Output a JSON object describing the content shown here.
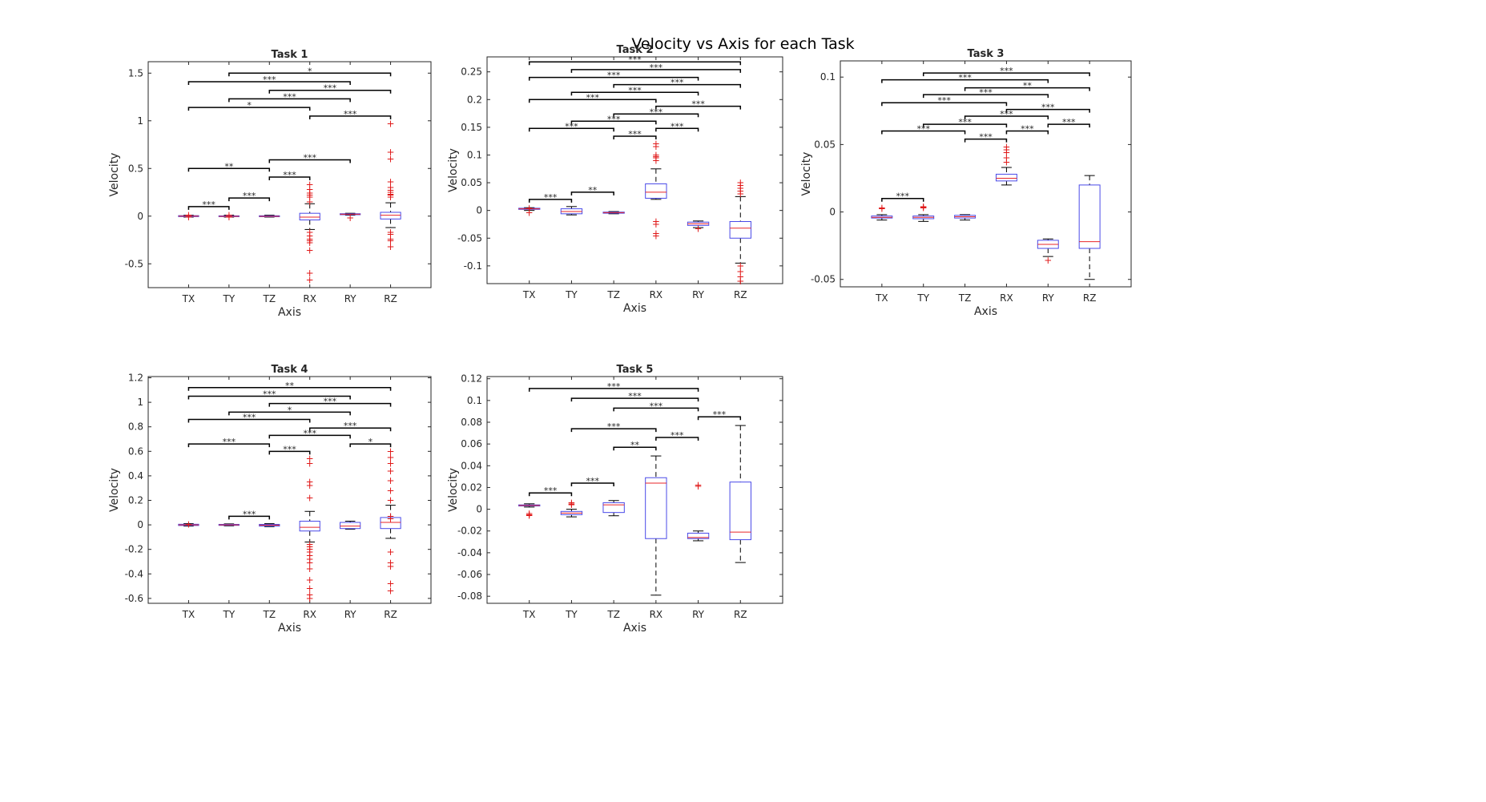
{
  "figure": {
    "title": "Velocity vs Axis for each Task"
  },
  "colors": {
    "box": "#4a4ae8",
    "median": "#e8262a",
    "outlier": "#e01a1a",
    "whisker": "#000000",
    "axes": "#262626"
  },
  "chart_data": [
    {
      "type": "box",
      "title": "Task 1",
      "xlabel": "Axis",
      "ylabel": "Velocity",
      "categories": [
        "TX",
        "TY",
        "TZ",
        "RX",
        "RY",
        "RZ"
      ],
      "ylim": [
        -0.75,
        1.62
      ],
      "yticks": [
        -0.5,
        0,
        0.5,
        1,
        1.5
      ],
      "yticklabels": [
        "-0.5",
        "0",
        "0.5",
        "1",
        "1.5"
      ],
      "boxes": [
        {
          "q1": -0.005,
          "median": 0.0,
          "q3": 0.005,
          "wlo": -0.01,
          "whi": 0.01,
          "outliers": [
            0.01,
            -0.01
          ]
        },
        {
          "q1": -0.005,
          "median": -0.002,
          "q3": 0.003,
          "wlo": -0.01,
          "whi": 0.01,
          "outliers": [
            0.01,
            -0.01
          ]
        },
        {
          "q1": -0.006,
          "median": -0.002,
          "q3": 0.004,
          "wlo": -0.01,
          "whi": 0.01,
          "outliers": []
        },
        {
          "q1": -0.04,
          "median": -0.01,
          "q3": 0.03,
          "wlo": -0.14,
          "whi": 0.13,
          "outliers": [
            0.33,
            0.28,
            0.24,
            0.22,
            0.2,
            0.15,
            -0.17,
            -0.21,
            -0.24,
            -0.26,
            -0.28,
            -0.36,
            -0.6,
            -0.67
          ]
        },
        {
          "q1": 0.015,
          "median": 0.02,
          "q3": 0.025,
          "wlo": 0.01,
          "whi": 0.03,
          "outliers": [
            -0.02
          ]
        },
        {
          "q1": -0.03,
          "median": 0.01,
          "q3": 0.04,
          "wlo": -0.12,
          "whi": 0.14,
          "outliers": [
            0.97,
            0.67,
            0.6,
            0.36,
            0.3,
            0.27,
            0.25,
            0.23,
            0.22,
            0.2,
            -0.17,
            -0.19,
            -0.24,
            -0.26,
            -0.32
          ]
        }
      ],
      "brackets": [
        {
          "from": "TY",
          "to": "RZ",
          "y": 1.5,
          "label": "*"
        },
        {
          "from": "TX",
          "to": "RY",
          "y": 1.41,
          "label": "***"
        },
        {
          "from": "TZ",
          "to": "RZ",
          "y": 1.32,
          "label": "***"
        },
        {
          "from": "TY",
          "to": "RY",
          "y": 1.23,
          "label": "***"
        },
        {
          "from": "TX",
          "to": "RX",
          "y": 1.14,
          "label": "*"
        },
        {
          "from": "RX",
          "to": "RZ",
          "y": 1.05,
          "label": "***"
        },
        {
          "from": "TZ",
          "to": "RY",
          "y": 0.59,
          "label": "***"
        },
        {
          "from": "TX",
          "to": "TZ",
          "y": 0.5,
          "label": "**"
        },
        {
          "from": "TZ",
          "to": "RX",
          "y": 0.41,
          "label": "***"
        },
        {
          "from": "TY",
          "to": "TZ",
          "y": 0.19,
          "label": "***"
        },
        {
          "from": "TX",
          "to": "TY",
          "y": 0.1,
          "label": "***"
        }
      ]
    },
    {
      "type": "box",
      "title": "Task 2",
      "xlabel": "Axis",
      "ylabel": "Velocity",
      "categories": [
        "TX",
        "TY",
        "TZ",
        "RX",
        "RY",
        "RZ"
      ],
      "ylim": [
        -0.132,
        0.277
      ],
      "yticks": [
        -0.1,
        -0.05,
        0,
        0.05,
        0.1,
        0.15,
        0.2,
        0.25
      ],
      "yticklabels": [
        "-0.1",
        "-0.05",
        "0",
        "0.05",
        "0.1",
        "0.15",
        "0.2",
        "0.25"
      ],
      "boxes": [
        {
          "q1": 0.002,
          "median": 0.003,
          "q3": 0.004,
          "wlo": 0.0,
          "whi": 0.005,
          "outliers": [
            -0.004,
            0.004
          ]
        },
        {
          "q1": -0.006,
          "median": -0.002,
          "q3": 0.003,
          "wlo": -0.008,
          "whi": 0.007,
          "outliers": []
        },
        {
          "q1": -0.005,
          "median": -0.004,
          "q3": -0.003,
          "wlo": -0.006,
          "whi": -0.002,
          "outliers": []
        },
        {
          "q1": 0.022,
          "median": 0.033,
          "q3": 0.048,
          "wlo": 0.02,
          "whi": 0.075,
          "outliers": [
            0.12,
            0.115,
            0.1,
            0.097,
            0.095,
            0.09,
            -0.02,
            -0.025,
            -0.042,
            -0.046
          ]
        },
        {
          "q1": -0.027,
          "median": -0.024,
          "q3": -0.021,
          "wlo": -0.031,
          "whi": -0.019,
          "outliers": [
            -0.033
          ]
        },
        {
          "q1": -0.05,
          "median": -0.032,
          "q3": -0.02,
          "wlo": -0.095,
          "whi": 0.025,
          "outliers": [
            0.05,
            0.045,
            0.04,
            0.035,
            0.03,
            -0.1,
            -0.11,
            -0.12,
            -0.128
          ]
        }
      ],
      "brackets": [
        {
          "from": "TX",
          "to": "RZ",
          "y": 0.268,
          "label": "***"
        },
        {
          "from": "TY",
          "to": "RZ",
          "y": 0.254,
          "label": "***"
        },
        {
          "from": "TX",
          "to": "RY",
          "y": 0.24,
          "label": "***"
        },
        {
          "from": "TZ",
          "to": "RZ",
          "y": 0.227,
          "label": "***"
        },
        {
          "from": "TY",
          "to": "RY",
          "y": 0.213,
          "label": "***"
        },
        {
          "from": "TX",
          "to": "RX",
          "y": 0.2,
          "label": "***"
        },
        {
          "from": "RX",
          "to": "RZ",
          "y": 0.188,
          "label": "***"
        },
        {
          "from": "TZ",
          "to": "RY",
          "y": 0.174,
          "label": "***"
        },
        {
          "from": "TY",
          "to": "RX",
          "y": 0.161,
          "label": "***"
        },
        {
          "from": "TX",
          "to": "TZ",
          "y": 0.148,
          "label": "***"
        },
        {
          "from": "RX",
          "to": "RY",
          "y": 0.148,
          "label": "***"
        },
        {
          "from": "TZ",
          "to": "RX",
          "y": 0.134,
          "label": "***"
        },
        {
          "from": "TY",
          "to": "TZ",
          "y": 0.033,
          "label": "**"
        },
        {
          "from": "TX",
          "to": "TY",
          "y": 0.02,
          "label": "***"
        }
      ]
    },
    {
      "type": "box",
      "title": "Task 3",
      "xlabel": "Axis",
      "ylabel": "Velocity",
      "categories": [
        "TX",
        "TY",
        "TZ",
        "RX",
        "RY",
        "RZ"
      ],
      "ylim": [
        -0.0555,
        0.112
      ],
      "yticks": [
        -0.05,
        0,
        0.05,
        0.1
      ],
      "yticklabels": [
        "-0.05",
        "0",
        "0.05",
        "0.1"
      ],
      "boxes": [
        {
          "q1": -0.0045,
          "median": -0.004,
          "q3": -0.003,
          "wlo": -0.006,
          "whi": -0.002,
          "outliers": [
            0.003,
            0.0025
          ]
        },
        {
          "q1": -0.005,
          "median": -0.004,
          "q3": -0.003,
          "wlo": -0.007,
          "whi": -0.002,
          "outliers": [
            0.004,
            0.0035,
            0.003
          ]
        },
        {
          "q1": -0.0045,
          "median": -0.0035,
          "q3": -0.0025,
          "wlo": -0.006,
          "whi": -0.002,
          "outliers": []
        },
        {
          "q1": 0.023,
          "median": 0.025,
          "q3": 0.028,
          "wlo": 0.02,
          "whi": 0.033,
          "outliers": [
            0.048,
            0.046,
            0.044,
            0.04,
            0.037
          ]
        },
        {
          "q1": -0.027,
          "median": -0.024,
          "q3": -0.021,
          "wlo": -0.033,
          "whi": -0.02,
          "outliers": [
            -0.036
          ]
        },
        {
          "q1": -0.027,
          "median": -0.022,
          "q3": 0.02,
          "wlo": -0.05,
          "whi": 0.027,
          "outliers": []
        }
      ],
      "brackets": [
        {
          "from": "TY",
          "to": "RZ",
          "y": 0.103,
          "label": "***"
        },
        {
          "from": "TX",
          "to": "RY",
          "y": 0.098,
          "label": "***"
        },
        {
          "from": "TZ",
          "to": "RZ",
          "y": 0.092,
          "label": "**"
        },
        {
          "from": "TY",
          "to": "RY",
          "y": 0.087,
          "label": "***"
        },
        {
          "from": "TX",
          "to": "RX",
          "y": 0.081,
          "label": "***"
        },
        {
          "from": "RX",
          "to": "RZ",
          "y": 0.076,
          "label": "***"
        },
        {
          "from": "TZ",
          "to": "RY",
          "y": 0.071,
          "label": "***"
        },
        {
          "from": "TY",
          "to": "RX",
          "y": 0.065,
          "label": "***"
        },
        {
          "from": "RY",
          "to": "RZ",
          "y": 0.065,
          "label": "***"
        },
        {
          "from": "TX",
          "to": "TZ",
          "y": 0.06,
          "label": "***"
        },
        {
          "from": "RX",
          "to": "RY",
          "y": 0.06,
          "label": "***"
        },
        {
          "from": "TZ",
          "to": "RX",
          "y": 0.054,
          "label": "***"
        },
        {
          "from": "TX",
          "to": "TY",
          "y": 0.01,
          "label": "***"
        }
      ]
    },
    {
      "type": "box",
      "title": "Task 4",
      "xlabel": "Axis",
      "ylabel": "Velocity",
      "categories": [
        "TX",
        "TY",
        "TZ",
        "RX",
        "RY",
        "RZ"
      ],
      "ylim": [
        -0.64,
        1.21
      ],
      "yticks": [
        -0.6,
        -0.4,
        -0.2,
        0,
        0.2,
        0.4,
        0.6,
        0.8,
        1,
        1.2
      ],
      "yticklabels": [
        "-0.6",
        "-0.4",
        "-0.2",
        "0",
        "0.2",
        "0.4",
        "0.6",
        "0.8",
        "1",
        "1.2"
      ],
      "boxes": [
        {
          "q1": -0.005,
          "median": 0.0,
          "q3": 0.005,
          "wlo": -0.01,
          "whi": 0.01,
          "outliers": [
            0.005
          ]
        },
        {
          "q1": -0.004,
          "median": 0.0,
          "q3": 0.004,
          "wlo": -0.008,
          "whi": 0.008,
          "outliers": []
        },
        {
          "q1": -0.01,
          "median": -0.003,
          "q3": 0.004,
          "wlo": -0.015,
          "whi": 0.01,
          "outliers": []
        },
        {
          "q1": -0.05,
          "median": -0.02,
          "q3": 0.03,
          "wlo": -0.14,
          "whi": 0.11,
          "outliers": [
            0.54,
            0.5,
            0.35,
            0.32,
            0.22,
            -0.16,
            -0.18,
            -0.2,
            -0.22,
            -0.25,
            -0.28,
            -0.31,
            -0.36,
            -0.45,
            -0.52,
            -0.57,
            -0.6
          ]
        },
        {
          "q1": -0.03,
          "median": -0.01,
          "q3": 0.02,
          "wlo": -0.035,
          "whi": 0.03,
          "outliers": []
        },
        {
          "q1": -0.03,
          "median": 0.02,
          "q3": 0.06,
          "wlo": -0.11,
          "whi": 0.16,
          "outliers": [
            0.6,
            0.55,
            0.5,
            0.44,
            0.36,
            0.28,
            0.2,
            0.07,
            0.05,
            -0.22,
            -0.31,
            -0.34,
            -0.48,
            -0.54
          ]
        }
      ],
      "brackets": [
        {
          "from": "TX",
          "to": "RZ",
          "y": 1.12,
          "label": "**"
        },
        {
          "from": "TX",
          "to": "RY",
          "y": 1.05,
          "label": "***"
        },
        {
          "from": "TZ",
          "to": "RZ",
          "y": 0.99,
          "label": "***"
        },
        {
          "from": "TY",
          "to": "RY",
          "y": 0.92,
          "label": "*"
        },
        {
          "from": "TX",
          "to": "RX",
          "y": 0.86,
          "label": "***"
        },
        {
          "from": "RX",
          "to": "RZ",
          "y": 0.79,
          "label": "***"
        },
        {
          "from": "TZ",
          "to": "RY",
          "y": 0.73,
          "label": "***"
        },
        {
          "from": "TX",
          "to": "TZ",
          "y": 0.66,
          "label": "***"
        },
        {
          "from": "RY",
          "to": "RZ",
          "y": 0.66,
          "label": "*"
        },
        {
          "from": "TZ",
          "to": "RX",
          "y": 0.6,
          "label": "***"
        },
        {
          "from": "TY",
          "to": "TZ",
          "y": 0.07,
          "label": "***"
        }
      ]
    },
    {
      "type": "box",
      "title": "Task 5",
      "xlabel": "Axis",
      "ylabel": "Velocity",
      "categories": [
        "TX",
        "TY",
        "TZ",
        "RX",
        "RY",
        "RZ"
      ],
      "ylim": [
        -0.0865,
        0.122
      ],
      "yticks": [
        -0.08,
        -0.06,
        -0.04,
        -0.02,
        0,
        0.02,
        0.04,
        0.06,
        0.08,
        0.1,
        0.12
      ],
      "yticklabels": [
        "-0.08",
        "-0.06",
        "-0.04",
        "-0.02",
        "0",
        "0.02",
        "0.04",
        "0.06",
        "0.08",
        "0.1",
        "0.12"
      ],
      "boxes": [
        {
          "q1": 0.003,
          "median": 0.0035,
          "q3": 0.004,
          "wlo": 0.002,
          "whi": 0.005,
          "outliers": [
            -0.004,
            -0.005,
            -0.006
          ]
        },
        {
          "q1": -0.005,
          "median": -0.0035,
          "q3": -0.002,
          "wlo": -0.007,
          "whi": 0.0,
          "outliers": [
            0.006,
            0.005,
            0.004
          ]
        },
        {
          "q1": -0.003,
          "median": 0.004,
          "q3": 0.006,
          "wlo": -0.006,
          "whi": 0.008,
          "outliers": []
        },
        {
          "q1": -0.027,
          "median": 0.024,
          "q3": 0.029,
          "wlo": -0.079,
          "whi": 0.049,
          "outliers": []
        },
        {
          "q1": -0.027,
          "median": -0.026,
          "q3": -0.022,
          "wlo": -0.029,
          "whi": -0.02,
          "outliers": [
            0.022,
            0.021
          ]
        },
        {
          "q1": -0.028,
          "median": -0.021,
          "q3": 0.025,
          "wlo": -0.049,
          "whi": 0.077,
          "outliers": []
        }
      ],
      "brackets": [
        {
          "from": "TX",
          "to": "RY",
          "y": 0.111,
          "label": "***"
        },
        {
          "from": "TY",
          "to": "RY",
          "y": 0.102,
          "label": "***"
        },
        {
          "from": "TZ",
          "to": "RY",
          "y": 0.093,
          "label": "***"
        },
        {
          "from": "RY",
          "to": "RZ",
          "y": 0.085,
          "label": "***"
        },
        {
          "from": "TY",
          "to": "RX",
          "y": 0.074,
          "label": "***"
        },
        {
          "from": "RX",
          "to": "RY",
          "y": 0.066,
          "label": "***"
        },
        {
          "from": "TZ",
          "to": "RX",
          "y": 0.057,
          "label": "**"
        },
        {
          "from": "TY",
          "to": "TZ",
          "y": 0.024,
          "label": "***"
        },
        {
          "from": "TX",
          "to": "TY",
          "y": 0.015,
          "label": "***"
        }
      ]
    }
  ]
}
